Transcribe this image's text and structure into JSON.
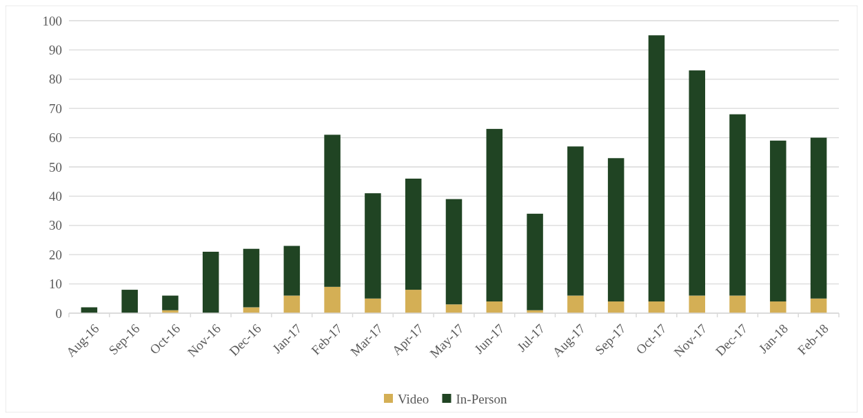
{
  "chart_data": {
    "type": "bar",
    "stacked": true,
    "categories": [
      "Aug-16",
      "Sep-16",
      "Oct-16",
      "Nov-16",
      "Dec-16",
      "Jan-17",
      "Feb-17",
      "Mar-17",
      "Apr-17",
      "May-17",
      "Jun-17",
      "Jul-17",
      "Aug-17",
      "Sep-17",
      "Oct-17",
      "Nov-17",
      "Dec-17",
      "Jan-18",
      "Feb-18"
    ],
    "series": [
      {
        "name": "Video",
        "color": "#d4af55",
        "values": [
          0,
          0,
          1,
          0,
          2,
          6,
          9,
          5,
          8,
          3,
          4,
          1,
          6,
          4,
          4,
          6,
          6,
          4,
          5
        ]
      },
      {
        "name": "In-Person",
        "color": "#204423",
        "values": [
          2,
          8,
          5,
          21,
          20,
          17,
          52,
          36,
          38,
          36,
          59,
          33,
          51,
          49,
          91,
          77,
          62,
          55,
          55
        ]
      }
    ],
    "ylim": [
      0,
      100
    ],
    "yticks": [
      0,
      10,
      20,
      30,
      40,
      50,
      60,
      70,
      80,
      90,
      100
    ],
    "grid": "y",
    "legend": "bottom"
  }
}
